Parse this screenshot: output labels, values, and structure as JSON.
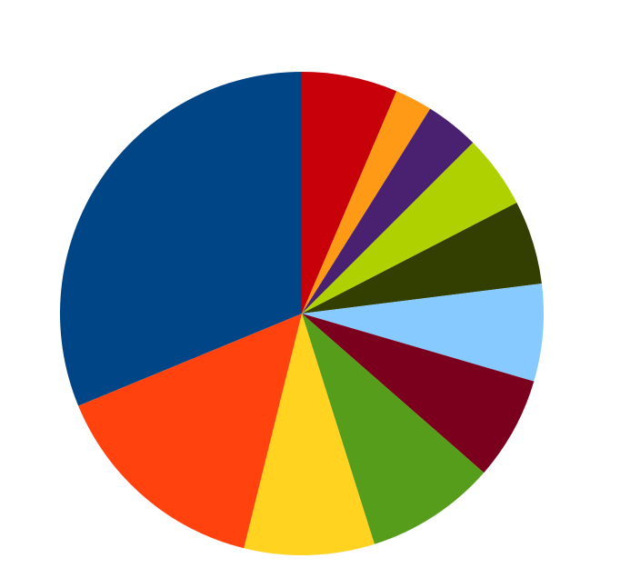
{
  "chart_data": {
    "type": "pie",
    "values": [
      6.4,
      2.5,
      3.6,
      4.9,
      5.6,
      6.5,
      6.9,
      8.7,
      8.7,
      14.9,
      31.2
    ],
    "colors": [
      "#c8000a",
      "#ff9a16",
      "#4a2170",
      "#b0d100",
      "#323f00",
      "#86caff",
      "#7a001e",
      "#579d1c",
      "#ffd320",
      "#ff420e",
      "#004586"
    ]
  }
}
